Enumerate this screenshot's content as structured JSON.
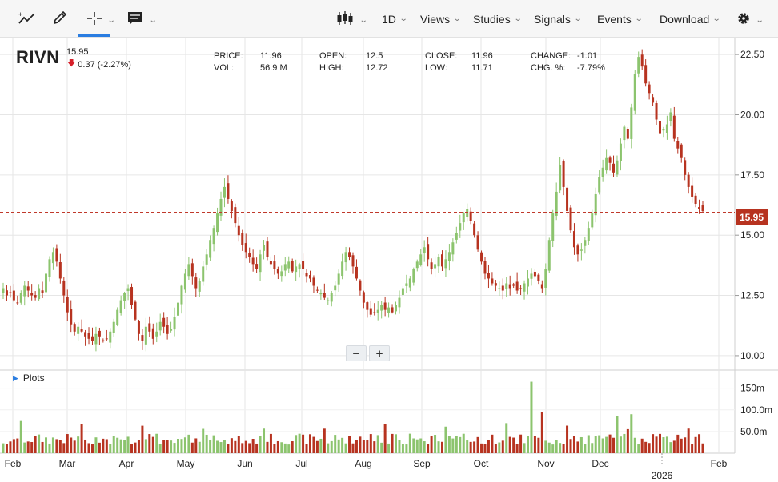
{
  "toolbar": {
    "interval_label": "1D",
    "views_label": "Views",
    "studies_label": "Studies",
    "signals_label": "Signals",
    "events_label": "Events",
    "download_label": "Download",
    "icons": [
      "draw-trend-icon",
      "pencil-icon",
      "crosshair-icon",
      "comment-icon",
      "candlestick-icon",
      "gear-icon"
    ]
  },
  "header": {
    "ticker": "RIVN",
    "last_price": "15.95",
    "change_text": "0.37 (-2.27%)"
  },
  "stats": [
    {
      "label": "PRICE:",
      "value": "11.96"
    },
    {
      "label": "VOL:",
      "value": "56.9 M"
    },
    {
      "label": "OPEN:",
      "value": "12.5"
    },
    {
      "label": "HIGH:",
      "value": "12.72"
    },
    {
      "label": "CLOSE:",
      "value": "11.96"
    },
    {
      "label": "LOW:",
      "value": "11.71"
    },
    {
      "label": "CHANGE:",
      "value": "-1.01"
    },
    {
      "label": "CHG. %:",
      "value": "-7.79%"
    }
  ],
  "price_flag": "15.95",
  "plots_label": "Plots",
  "colors": {
    "up": "#8cc46e",
    "down": "#b73320",
    "accent": "#2a7de1",
    "grid": "#e6e6e6"
  },
  "chart_data": [
    {
      "type": "candlestick",
      "title": "",
      "ylim": [
        9.5,
        23.2
      ],
      "y_ticks": [
        "10.00",
        "12.50",
        "15.00",
        "17.50",
        "20.00",
        "22.50"
      ],
      "y_tick_values": [
        10,
        12.5,
        15,
        17.5,
        20,
        22.5
      ],
      "x_tick_labels": [
        "Feb",
        "Mar",
        "Apr",
        "May",
        "Jun",
        "Jul",
        "Aug",
        "Sep",
        "Oct",
        "Nov",
        "Dec",
        "2026",
        "Feb"
      ],
      "current_price_line": 15.95,
      "grid": true,
      "closes": [
        12.8,
        12.5,
        12.6,
        12.3,
        12.2,
        12.6,
        12.9,
        12.7,
        12.5,
        12.4,
        12.8,
        12.6,
        13.4,
        14.0,
        14.3,
        13.9,
        13.2,
        12.5,
        11.8,
        11.3,
        11.0,
        11.2,
        11.0,
        10.8,
        10.7,
        10.6,
        10.9,
        10.8,
        10.6,
        10.7,
        11.0,
        11.4,
        11.9,
        12.3,
        12.6,
        12.8,
        12.1,
        11.5,
        10.9,
        10.6,
        11.2,
        11.0,
        10.7,
        11.0,
        11.4,
        11.2,
        10.9,
        11.1,
        11.6,
        12.2,
        12.9,
        13.4,
        13.8,
        13.3,
        12.8,
        13.1,
        13.7,
        14.2,
        14.8,
        15.3,
        15.9,
        16.5,
        17.0,
        16.5,
        16.0,
        15.5,
        15.0,
        14.6,
        14.3,
        14.1,
        13.8,
        13.6,
        14.2,
        14.6,
        14.1,
        13.8,
        13.6,
        13.4,
        13.5,
        13.8,
        13.9,
        13.5,
        13.7,
        13.8,
        13.6,
        13.3,
        13.2,
        12.9,
        12.7,
        12.6,
        12.4,
        12.3,
        12.6,
        12.9,
        13.4,
        13.9,
        14.3,
        14.1,
        13.7,
        13.2,
        12.7,
        12.2,
        11.9,
        11.7,
        11.8,
        11.9,
        12.1,
        11.9,
        12.0,
        11.8,
        12.1,
        12.4,
        12.8,
        13.0,
        13.2,
        13.6,
        13.9,
        14.2,
        14.5,
        14.0,
        13.6,
        13.8,
        14.1,
        13.7,
        14.0,
        14.3,
        14.7,
        15.1,
        15.5,
        15.9,
        16.1,
        15.6,
        15.0,
        14.4,
        13.9,
        13.4,
        13.2,
        13.0,
        12.9,
        12.8,
        12.7,
        13.0,
        12.8,
        12.9,
        12.7,
        12.8,
        13.0,
        13.2,
        13.4,
        13.3,
        13.1,
        12.8,
        13.6,
        14.8,
        15.9,
        16.8,
        17.9,
        17.0,
        16.0,
        15.2,
        14.5,
        14.2,
        14.4,
        14.8,
        15.3,
        15.9,
        16.7,
        17.4,
        17.8,
        18.2,
        18.0,
        17.6,
        18.1,
        18.8,
        19.5,
        19.0,
        20.3,
        21.7,
        22.4,
        22.0,
        21.3,
        20.9,
        20.5,
        19.8,
        19.2,
        19.4,
        19.6,
        20.1,
        19.0,
        18.6,
        18.2,
        17.5,
        17.0,
        16.6,
        16.3,
        16.1,
        16.0
      ],
      "volume": {
        "unit": "m",
        "y_ticks": [
          "50.0m",
          "100.0m",
          "150m"
        ],
        "y_tick_values": [
          50,
          100,
          150
        ],
        "ylim": [
          0,
          190
        ]
      }
    }
  ]
}
